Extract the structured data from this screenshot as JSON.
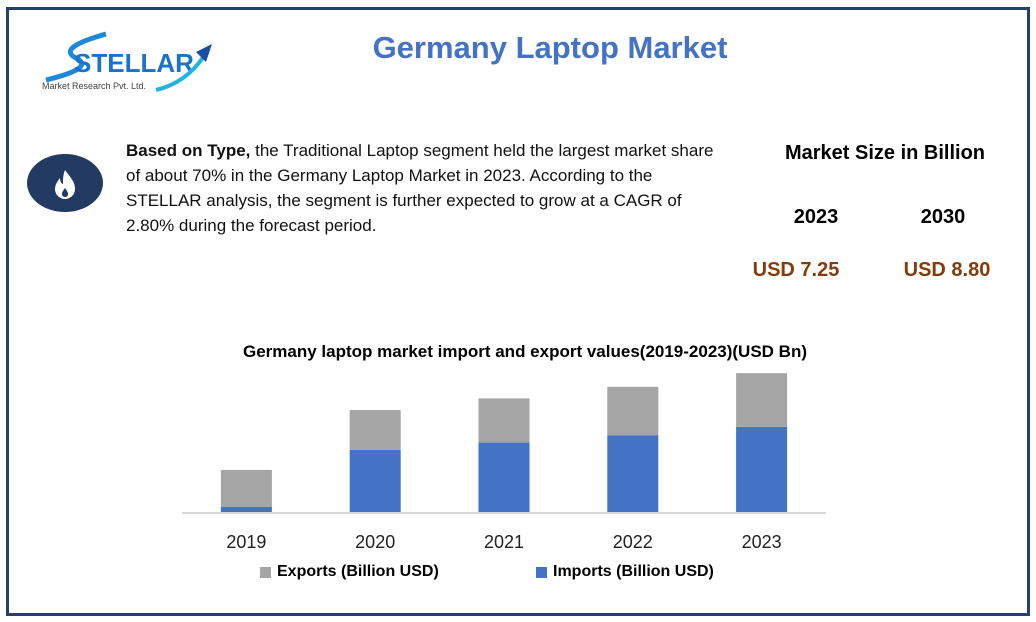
{
  "header": {
    "title": "Germany Laptop Market",
    "logo_text": "STELLAR",
    "logo_subtext": "Market Research Pvt. Ltd."
  },
  "summary": {
    "icon": "flame-icon",
    "lead": "Based on Type,",
    "body": " the Traditional Laptop segment held the largest market share of about 70% in the Germany Laptop Market in 2023. According to the STELLAR analysis, the segment is further expected to grow at a CAGR of 2.80% during the forecast period."
  },
  "market_size": {
    "title": "Market Size in Billion",
    "year1": "2023",
    "year2": "2030",
    "value1": "USD 7.25",
    "value2": "USD 8.80",
    "value_color": "#843c0c"
  },
  "chart_data": {
    "type": "bar",
    "stacked": true,
    "title": "Germany laptop market import and export values(2019-2023)(USD Bn)",
    "categories": [
      "2019",
      "2020",
      "2021",
      "2022",
      "2023"
    ],
    "series": [
      {
        "name": "Imports (Billion USD)",
        "color": "#4472c4",
        "values": [
          0.5,
          5.9,
          6.6,
          7.3,
          8.1
        ]
      },
      {
        "name": "Exports (Billion USD)",
        "color": "#a5a5a5",
        "values": [
          3.5,
          3.8,
          4.2,
          4.6,
          5.1
        ]
      }
    ],
    "ylim": [
      0,
      13.5
    ],
    "grid": false,
    "legend": "bottom"
  }
}
